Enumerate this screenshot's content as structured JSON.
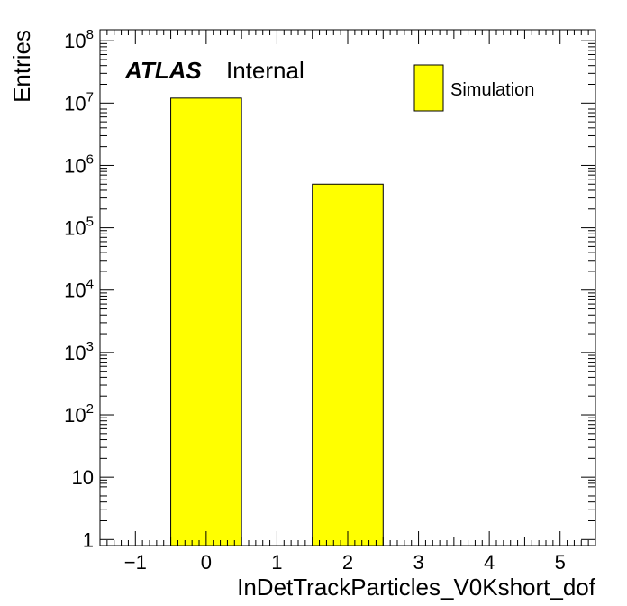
{
  "chart_data": {
    "type": "bar",
    "title": "",
    "xlabel": "InDetTrackParticles_V0Kshort_dof",
    "ylabel": "Entries",
    "xlim": [
      -1.5,
      5.5
    ],
    "ylim": [
      0.8,
      150000000
    ],
    "yscale": "log",
    "bin_width": 1,
    "bins": [
      {
        "center": 0,
        "value": 12000000
      },
      {
        "center": 2,
        "value": 500000
      }
    ],
    "series": [
      {
        "name": "Simulation",
        "color": "#ffff00"
      }
    ],
    "x_tick_labels": [
      "−1",
      "0",
      "1",
      "2",
      "3",
      "4",
      "5"
    ],
    "x_tick_values": [
      -1,
      0,
      1,
      2,
      3,
      4,
      5
    ],
    "y_tick_values": [
      1,
      10,
      100,
      1000,
      10000,
      100000,
      1000000,
      10000000,
      100000000
    ],
    "y_tick_labels": [
      {
        "base": "1",
        "exp": ""
      },
      {
        "base": "10",
        "exp": ""
      },
      {
        "base": "10",
        "exp": "2"
      },
      {
        "base": "10",
        "exp": "3"
      },
      {
        "base": "10",
        "exp": "4"
      },
      {
        "base": "10",
        "exp": "5"
      },
      {
        "base": "10",
        "exp": "6"
      },
      {
        "base": "10",
        "exp": "7"
      },
      {
        "base": "10",
        "exp": "8"
      }
    ],
    "legend_position": "top-right",
    "grid": false
  },
  "annotation": {
    "experiment": "ATLAS",
    "status": "Internal"
  },
  "colors": {
    "bar_fill": "#ffff00",
    "bar_stroke": "#000000",
    "axis": "#000000"
  }
}
